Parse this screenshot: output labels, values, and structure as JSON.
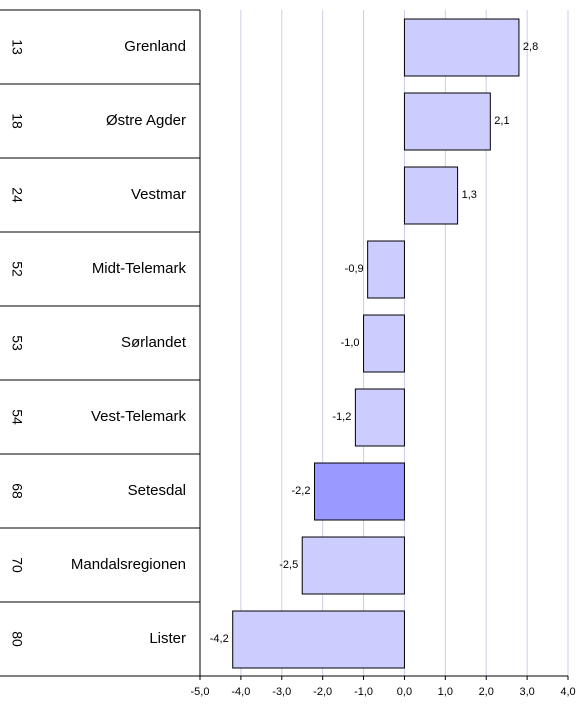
{
  "chart_data": {
    "type": "hbar",
    "ranks": [
      13,
      18,
      24,
      52,
      53,
      54,
      68,
      70,
      80
    ],
    "categories": [
      "Grenland",
      "Østre Agder",
      "Vestmar",
      "Midt-Telemark",
      "Sørlandet",
      "Vest-Telemark",
      "Setesdal",
      "Mandalsregionen",
      "Lister"
    ],
    "values": [
      2.8,
      2.1,
      1.3,
      -0.9,
      -1.0,
      -1.2,
      -2.2,
      -2.5,
      -4.2
    ],
    "value_labels": [
      "2,8",
      "2,1",
      "1,3",
      "-0,9",
      "-1,0",
      "-1,2",
      "-2,2",
      "-2,5",
      "-4,2"
    ],
    "colors": [
      "#ccccff",
      "#ccccff",
      "#ccccff",
      "#ccccff",
      "#ccccff",
      "#ccccff",
      "#9999ff",
      "#ccccff",
      "#ccccff"
    ],
    "xlim": [
      -5,
      4
    ],
    "xticks": [
      {
        "value": -5,
        "label": "-5,0"
      },
      {
        "value": -4,
        "label": "-4,0"
      },
      {
        "value": -3,
        "label": "-3,0"
      },
      {
        "value": -2,
        "label": "-2,0"
      },
      {
        "value": -1,
        "label": "-1,0"
      },
      {
        "value": 0,
        "label": "0,0"
      },
      {
        "value": 1,
        "label": "1,0"
      },
      {
        "value": 2,
        "label": "2,0"
      },
      {
        "value": 3,
        "label": "3,0"
      },
      {
        "value": 4,
        "label": "4,0"
      }
    ],
    "grid": true,
    "grid_color": "#ccccee"
  }
}
